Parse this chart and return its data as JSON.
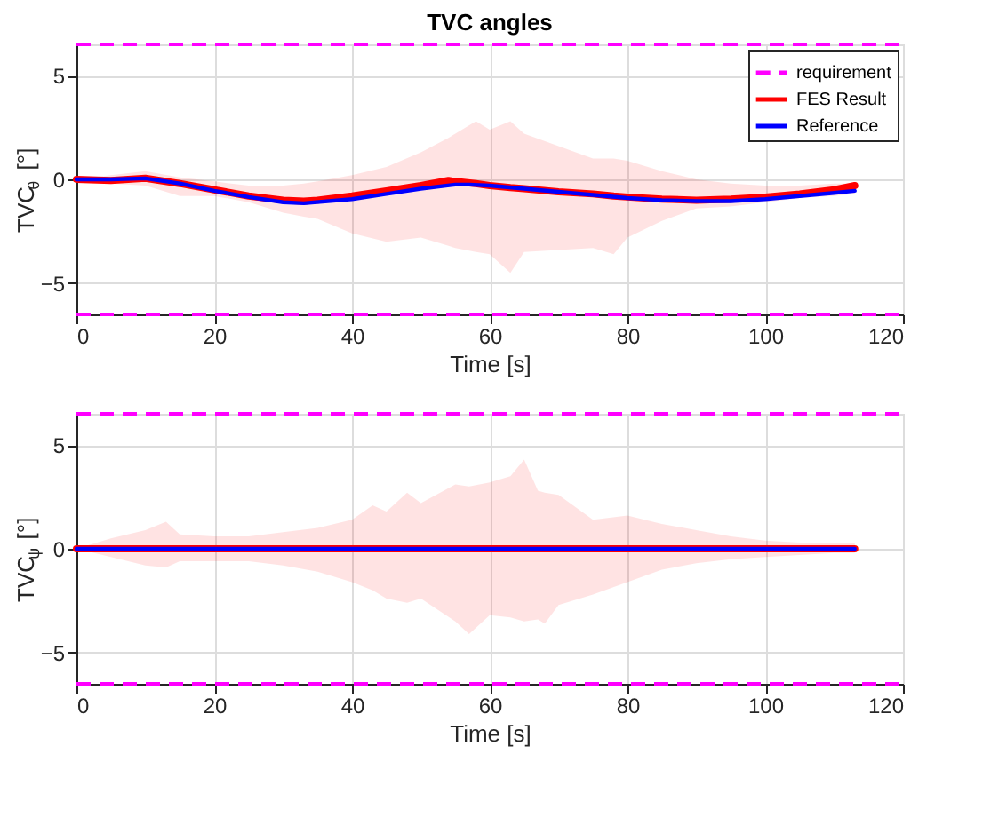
{
  "chart_data": [
    {
      "type": "line",
      "title": "TVC angles",
      "xlabel": "Time [s]",
      "ylabel": "TVC$_{θ}$ [°]",
      "xlim": [
        0,
        120
      ],
      "xticks": [
        0,
        20,
        40,
        60,
        80,
        100,
        120
      ],
      "ylim": [
        -6.5,
        6.5
      ],
      "yticks": [
        -5,
        0,
        5
      ],
      "grid": true,
      "legend": "top right",
      "line_style": "solid",
      "ref_lines": [
        {
          "axis": "y",
          "value": 6.5,
          "label": "requirement",
          "color": "#ff00ff",
          "line_style": "dashed"
        },
        {
          "axis": "y",
          "value": -6.5,
          "color": "#ff00ff",
          "line_style": "dashed"
        }
      ],
      "series": [
        {
          "name": "FES Result",
          "color": "#ff0000",
          "x": [
            0,
            5,
            10,
            15,
            20,
            25,
            30,
            33,
            35,
            40,
            45,
            50,
            54,
            55,
            58,
            60,
            63,
            65,
            70,
            75,
            78,
            80,
            85,
            90,
            95,
            100,
            105,
            110,
            113
          ],
          "values": [
            0,
            -0.05,
            0.05,
            -0.2,
            -0.5,
            -0.8,
            -1.0,
            -1.05,
            -1.0,
            -0.8,
            -0.55,
            -0.3,
            -0.05,
            -0.1,
            -0.2,
            -0.3,
            -0.4,
            -0.45,
            -0.6,
            -0.7,
            -0.8,
            -0.85,
            -0.95,
            -1.0,
            -0.95,
            -0.85,
            -0.7,
            -0.5,
            -0.3
          ],
          "upper": [
            0,
            0.2,
            0.4,
            0.1,
            -0.1,
            -0.3,
            -0.3,
            -0.2,
            -0.1,
            0.2,
            0.6,
            1.3,
            2.0,
            2.2,
            2.8,
            2.4,
            2.8,
            2.2,
            1.6,
            1.0,
            1.0,
            0.9,
            0.4,
            0.0,
            -0.2,
            -0.3,
            -0.3,
            -0.2,
            -0.2
          ],
          "lower": [
            0,
            -0.2,
            -0.3,
            -0.8,
            -0.8,
            -1.1,
            -1.6,
            -1.8,
            -1.9,
            -2.6,
            -3.0,
            -2.8,
            -3.2,
            -3.3,
            -3.5,
            -3.6,
            -4.5,
            -3.5,
            -3.4,
            -3.3,
            -3.6,
            -2.8,
            -2.0,
            -1.4,
            -1.3,
            -1.1,
            -0.9,
            -0.8,
            -0.7
          ]
        },
        {
          "name": "Reference",
          "color": "#0000ff",
          "x": [
            0,
            5,
            10,
            15,
            20,
            25,
            30,
            33,
            40,
            45,
            50,
            55,
            57,
            60,
            65,
            70,
            75,
            80,
            85,
            90,
            95,
            100,
            105,
            110,
            113
          ],
          "values": [
            0,
            0,
            0.05,
            -0.2,
            -0.55,
            -0.85,
            -1.1,
            -1.15,
            -0.95,
            -0.7,
            -0.45,
            -0.25,
            -0.25,
            -0.3,
            -0.45,
            -0.6,
            -0.75,
            -0.9,
            -1.0,
            -1.05,
            -1.05,
            -0.95,
            -0.8,
            -0.65,
            -0.55
          ]
        }
      ]
    },
    {
      "type": "line",
      "xlabel": "Time [s]",
      "ylabel": "TVC$_{ψ}$ [°]",
      "xlim": [
        0,
        120
      ],
      "xticks": [
        0,
        20,
        40,
        60,
        80,
        100,
        120
      ],
      "ylim": [
        -6.5,
        6.5
      ],
      "yticks": [
        -5,
        0,
        5
      ],
      "grid": true,
      "line_style": "solid",
      "ref_lines": [
        {
          "axis": "y",
          "value": 6.5,
          "color": "#ff00ff",
          "line_style": "dashed"
        },
        {
          "axis": "y",
          "value": -6.5,
          "color": "#ff00ff",
          "line_style": "dashed"
        }
      ],
      "series": [
        {
          "color": "#ff0000",
          "x": [
            0,
            5,
            10,
            13,
            15,
            20,
            25,
            30,
            35,
            40,
            43,
            45,
            48,
            50,
            55,
            57,
            60,
            63,
            65,
            67,
            68,
            70,
            75,
            80,
            85,
            90,
            95,
            100,
            105,
            110,
            113
          ],
          "values": [
            0,
            0,
            0,
            0,
            0,
            0,
            0,
            0,
            0,
            0,
            0,
            0,
            0,
            0,
            0,
            0,
            0,
            0,
            0,
            0,
            0,
            0,
            0,
            0,
            0,
            0,
            0,
            0,
            0,
            0,
            0
          ],
          "upper": [
            0,
            0.5,
            0.9,
            1.3,
            0.7,
            0.6,
            0.6,
            0.8,
            1.0,
            1.4,
            2.1,
            1.8,
            2.7,
            2.2,
            3.1,
            3.0,
            3.2,
            3.5,
            4.3,
            2.8,
            2.7,
            2.6,
            1.4,
            1.6,
            1.2,
            0.9,
            0.6,
            0.4,
            0.3,
            0.3,
            0.3
          ],
          "lower": [
            0,
            -0.4,
            -0.8,
            -0.9,
            -0.6,
            -0.6,
            -0.6,
            -0.8,
            -1.1,
            -1.6,
            -2.0,
            -2.4,
            -2.6,
            -2.4,
            -3.5,
            -4.1,
            -3.2,
            -3.3,
            -3.5,
            -3.4,
            -3.6,
            -2.7,
            -2.2,
            -1.6,
            -1.0,
            -0.7,
            -0.5,
            -0.4,
            -0.3,
            -0.2,
            -0.2
          ]
        },
        {
          "color": "#0000ff",
          "x": [
            0,
            113
          ],
          "values": [
            0,
            0
          ]
        }
      ]
    }
  ]
}
